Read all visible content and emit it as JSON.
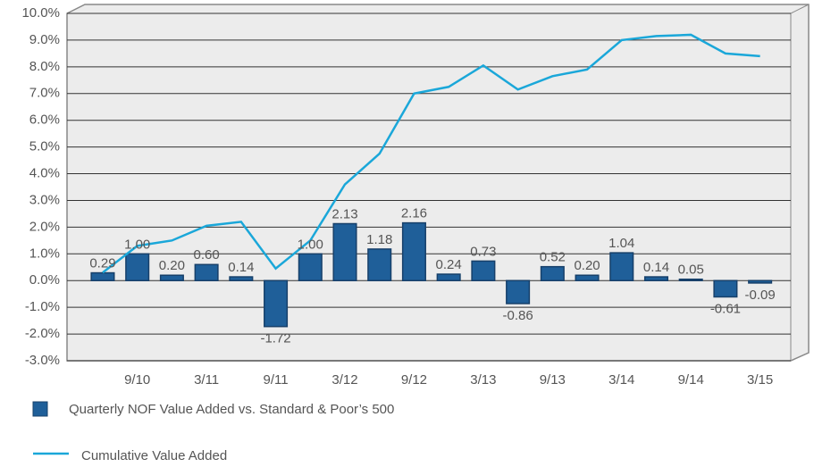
{
  "chart_data": {
    "type": "bar",
    "categories": [
      null,
      "9/10",
      null,
      "3/11",
      null,
      "9/11",
      null,
      "3/12",
      null,
      "9/12",
      null,
      "3/13",
      null,
      "9/13",
      null,
      "3/14",
      null,
      "9/14",
      null,
      "3/15"
    ],
    "series": [
      {
        "name": "Quarterly NOF Value Added vs. Standard & Poor’s 500",
        "type": "bar",
        "color": "#1f5f99",
        "values": [
          0.29,
          1.0,
          0.2,
          0.6,
          0.14,
          -1.72,
          1.0,
          2.13,
          1.18,
          2.16,
          0.24,
          0.73,
          -0.86,
          0.52,
          0.2,
          1.04,
          0.14,
          0.05,
          -0.61,
          -0.09
        ],
        "value_labels": [
          "0.29",
          "1.00",
          "0.20",
          "0.60",
          "0.14",
          "-1.72",
          "1.00",
          "2.13",
          "1.18",
          "2.16",
          "0.24",
          "0.73",
          "-0.86",
          "0.52",
          "0.20",
          "1.04",
          "0.14",
          "0.05",
          "-0.61",
          "-0.09"
        ]
      },
      {
        "name": "Cumulative Value Added",
        "type": "line",
        "color": "#1aa7d9",
        "values": [
          0.3,
          1.3,
          1.5,
          2.05,
          2.2,
          0.45,
          1.5,
          3.6,
          4.75,
          7.0,
          7.25,
          8.05,
          7.15,
          7.65,
          7.9,
          9.0,
          9.15,
          9.2,
          8.5,
          8.4
        ]
      }
    ],
    "ylim": [
      -3,
      10
    ],
    "yticks": [
      {
        "value": -3,
        "label": "-3.0%"
      },
      {
        "value": -2,
        "label": "-2.0%"
      },
      {
        "value": -1,
        "label": "-1.0%"
      },
      {
        "value": 0,
        "label": "0.0%"
      },
      {
        "value": 1,
        "label": "1.0%"
      },
      {
        "value": 2,
        "label": "2.0%"
      },
      {
        "value": 3,
        "label": "3.0%"
      },
      {
        "value": 4,
        "label": "4.0%"
      },
      {
        "value": 5,
        "label": "5.0%"
      },
      {
        "value": 6,
        "label": "6.0%"
      },
      {
        "value": 7,
        "label": "7.0%"
      },
      {
        "value": 8,
        "label": "8.0%"
      },
      {
        "value": 9,
        "label": "9.0%"
      },
      {
        "value": 10,
        "label": "10.0%"
      }
    ],
    "grid": true,
    "legend": "bottom"
  }
}
